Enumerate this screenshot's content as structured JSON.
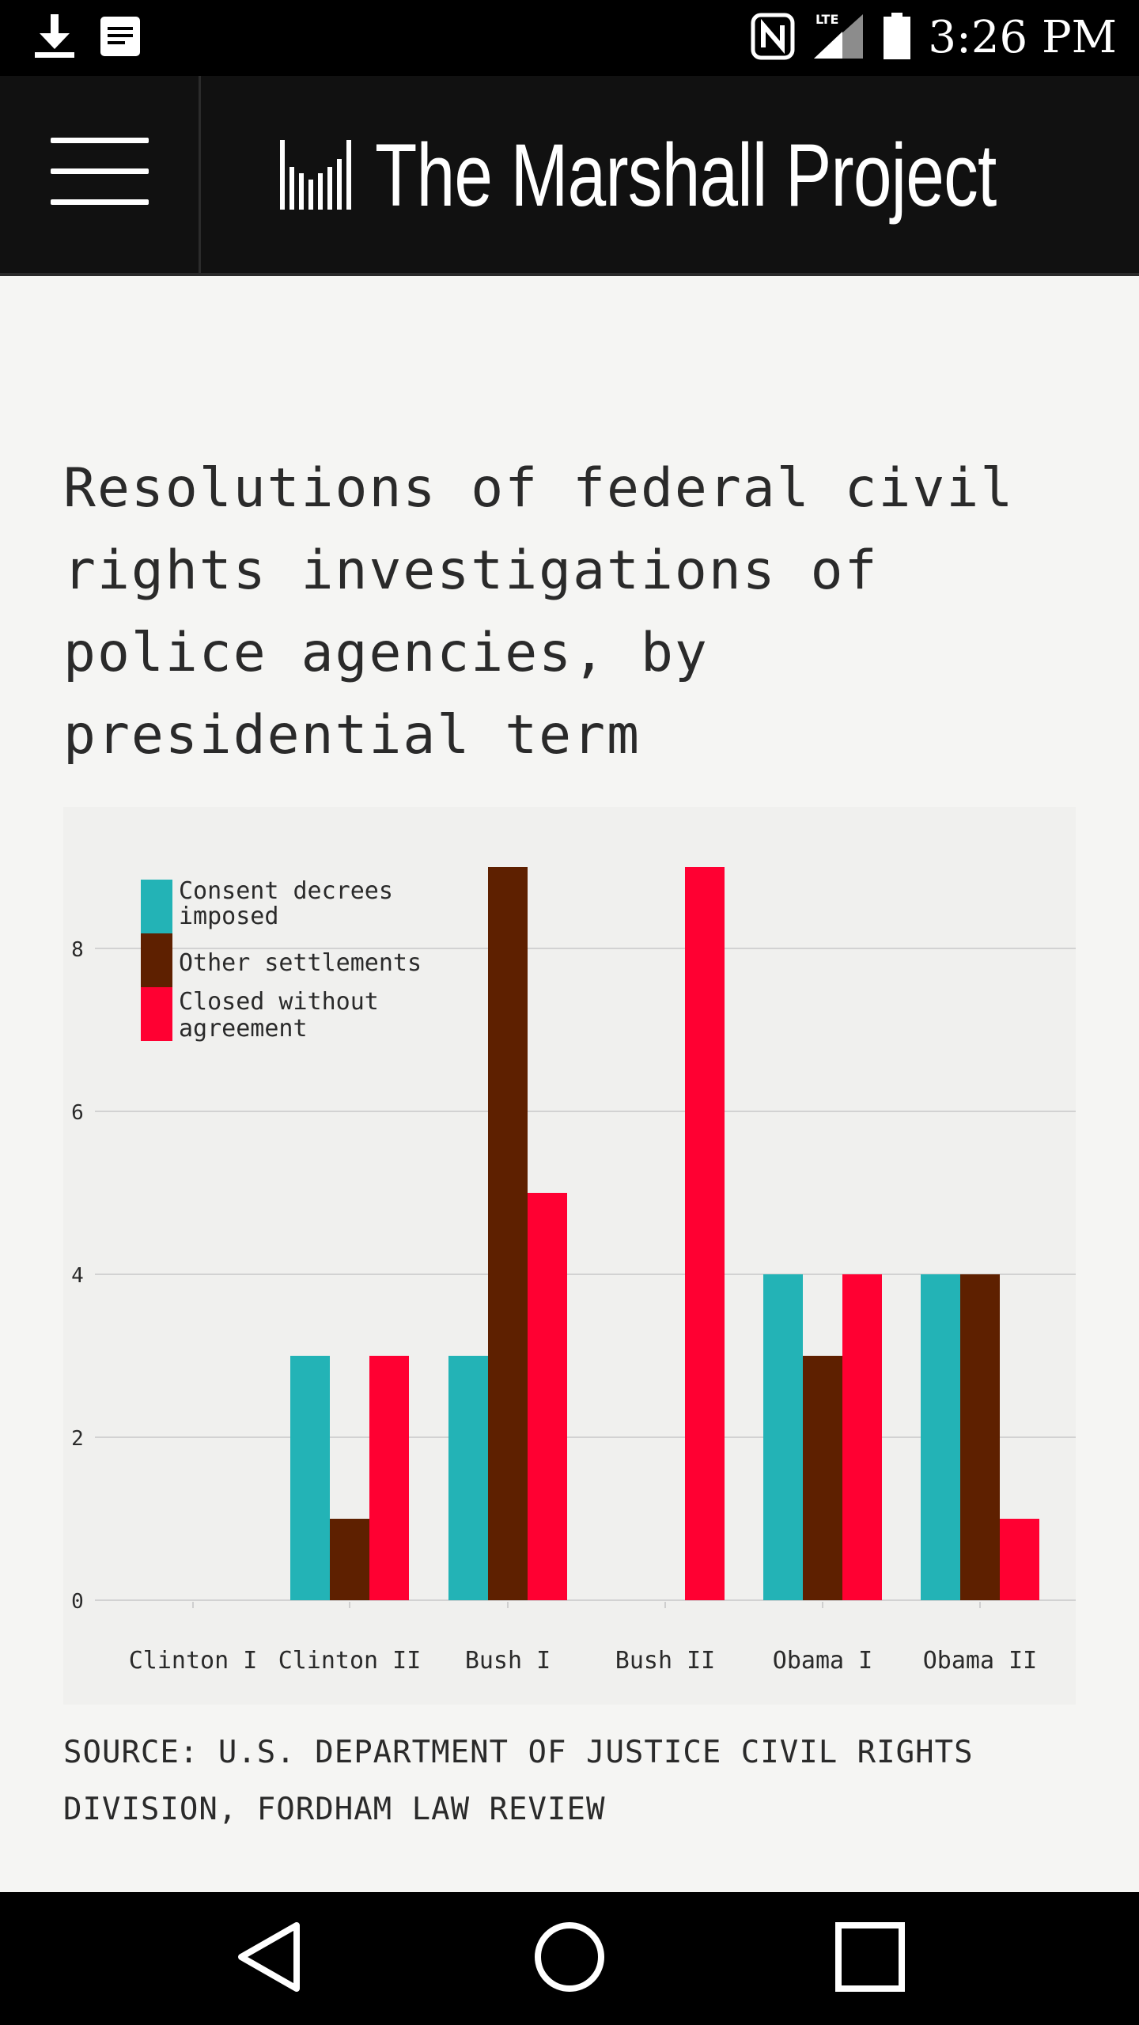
{
  "status_bar": {
    "time": "3:26 PM",
    "icons": [
      "download-icon",
      "notes-icon",
      "nfc-icon",
      "lte-signal-icon",
      "battery-icon"
    ],
    "lte_label": "LTE"
  },
  "header": {
    "logo_text": "The Marshall Project",
    "icons": [
      "menu-icon",
      "logo-bars-icon"
    ]
  },
  "chart_title": "Resolutions of federal civil rights investigations of police agencies, by presidential term",
  "source_note": "SOURCE: U.S. DEPARTMENT OF JUSTICE CIVIL RIGHTS DIVISION, FORDHAM LAW REVIEW",
  "chart_data": {
    "type": "bar",
    "title": "Resolutions of federal civil rights investigations of police agencies, by presidential term",
    "xlabel": "",
    "ylabel": "",
    "ylim": [
      0,
      9
    ],
    "yticks": [
      0,
      2,
      4,
      6,
      8
    ],
    "grid": true,
    "legend_position": "top-left",
    "categories": [
      "Clinton I",
      "Clinton II",
      "Bush I",
      "Bush II",
      "Obama I",
      "Obama II"
    ],
    "series": [
      {
        "name": "Consent decrees imposed",
        "legend_lines": [
          "Consent decrees",
          "imposed"
        ],
        "color": "#23b3b6",
        "values": [
          0,
          3,
          3,
          0,
          4,
          4
        ]
      },
      {
        "name": "Other settlements",
        "legend_lines": [
          "Other settlements"
        ],
        "color": "#5e2000",
        "values": [
          0,
          1,
          9,
          0,
          3,
          4
        ]
      },
      {
        "name": "Closed without agreement",
        "legend_lines": [
          "Closed without",
          "agreement"
        ],
        "color": "#ff0032",
        "values": [
          0,
          3,
          5,
          9,
          4,
          1
        ]
      }
    ]
  },
  "nav_bar": {
    "icons": [
      "back-icon",
      "home-icon",
      "recents-icon"
    ]
  },
  "colors": {
    "header_bg": "#111111",
    "page_bg": "#f5f5f3",
    "gridline": "#d2d2d2",
    "text": "#2a2a2a"
  }
}
